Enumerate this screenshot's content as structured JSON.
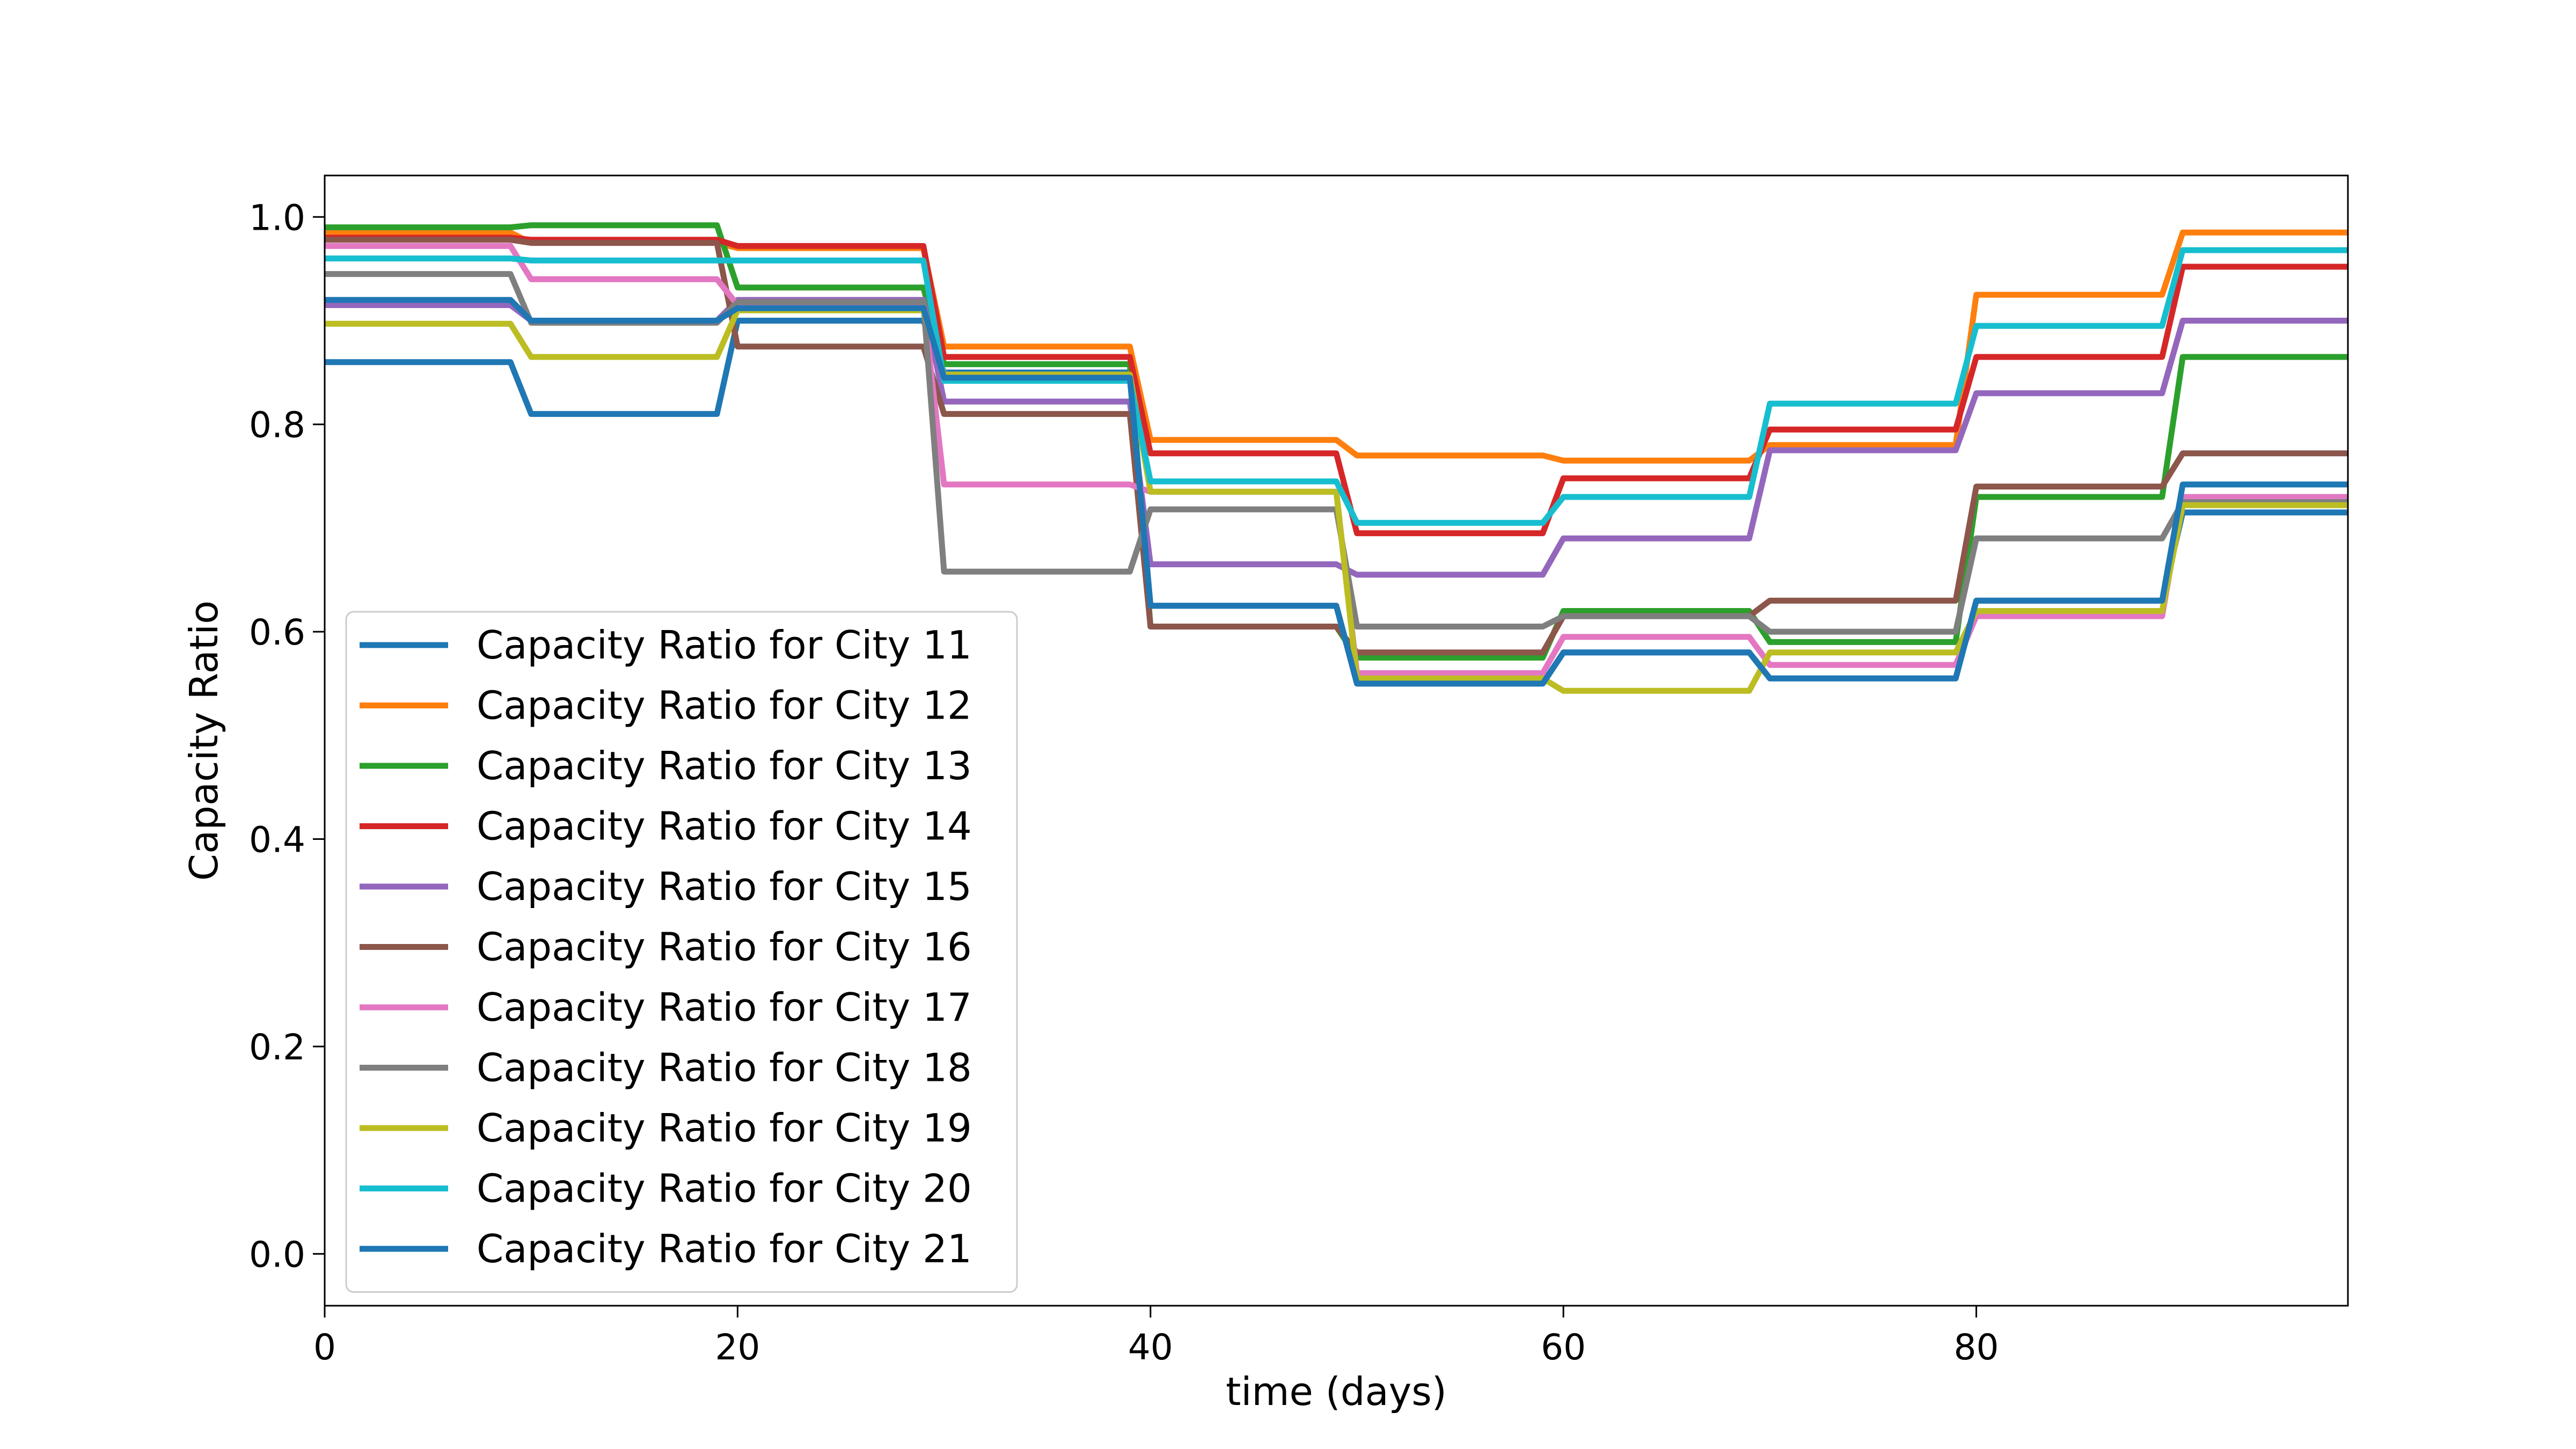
{
  "chart_data": {
    "type": "line",
    "title": "",
    "xlabel": "time (days)",
    "ylabel": "Capacity Ratio",
    "xlim": [
      0,
      98
    ],
    "ylim": [
      -0.05,
      1.04
    ],
    "x_ticks": [
      0,
      20,
      40,
      60,
      80
    ],
    "y_ticks": [
      0.0,
      0.2,
      0.4,
      0.6,
      0.8,
      1.0
    ],
    "x_tick_labels": [
      "0",
      "20",
      "40",
      "60",
      "80"
    ],
    "y_tick_labels": [
      "0.0",
      "0.2",
      "0.4",
      "0.6",
      "0.8",
      "1.0"
    ],
    "grid": false,
    "legend_position": "lower-left",
    "x": [
      0,
      9,
      10,
      19,
      20,
      29,
      30,
      39,
      40,
      49,
      50,
      59,
      60,
      69,
      70,
      79,
      80,
      89,
      90,
      98
    ],
    "series": [
      {
        "name": "Capacity Ratio for City 11",
        "color": "#1f77b4",
        "values": [
          0.86,
          0.86,
          0.81,
          0.81,
          0.9,
          0.9,
          0.85,
          0.85,
          0.625,
          0.625,
          0.55,
          0.55,
          0.58,
          0.58,
          0.555,
          0.555,
          0.63,
          0.63,
          0.715,
          0.715
        ]
      },
      {
        "name": "Capacity Ratio for City 12",
        "color": "#ff7f0e",
        "values": [
          0.985,
          0.985,
          0.975,
          0.975,
          0.97,
          0.97,
          0.875,
          0.875,
          0.785,
          0.785,
          0.77,
          0.77,
          0.765,
          0.765,
          0.78,
          0.78,
          0.925,
          0.925,
          0.985,
          0.985
        ]
      },
      {
        "name": "Capacity Ratio for City 13",
        "color": "#2ca02c",
        "values": [
          0.99,
          0.99,
          0.992,
          0.992,
          0.932,
          0.932,
          0.858,
          0.858,
          0.605,
          0.605,
          0.575,
          0.575,
          0.62,
          0.62,
          0.59,
          0.59,
          0.73,
          0.73,
          0.865,
          0.865
        ]
      },
      {
        "name": "Capacity Ratio for City 14",
        "color": "#d62728",
        "values": [
          0.98,
          0.98,
          0.978,
          0.978,
          0.972,
          0.972,
          0.865,
          0.865,
          0.772,
          0.772,
          0.695,
          0.695,
          0.748,
          0.748,
          0.795,
          0.795,
          0.865,
          0.865,
          0.952,
          0.952
        ]
      },
      {
        "name": "Capacity Ratio for City 15",
        "color": "#9467bd",
        "values": [
          0.915,
          0.915,
          0.9,
          0.9,
          0.92,
          0.92,
          0.822,
          0.822,
          0.665,
          0.665,
          0.655,
          0.655,
          0.69,
          0.69,
          0.775,
          0.775,
          0.83,
          0.83,
          0.9,
          0.9
        ]
      },
      {
        "name": "Capacity Ratio for City 16",
        "color": "#8c564b",
        "values": [
          0.978,
          0.978,
          0.975,
          0.975,
          0.875,
          0.875,
          0.81,
          0.81,
          0.605,
          0.605,
          0.58,
          0.58,
          0.615,
          0.615,
          0.63,
          0.63,
          0.74,
          0.74,
          0.772,
          0.772
        ]
      },
      {
        "name": "Capacity Ratio for City 17",
        "color": "#e377c2",
        "values": [
          0.972,
          0.972,
          0.94,
          0.94,
          0.915,
          0.915,
          0.742,
          0.742,
          0.735,
          0.735,
          0.56,
          0.56,
          0.595,
          0.595,
          0.568,
          0.568,
          0.615,
          0.615,
          0.73,
          0.73
        ]
      },
      {
        "name": "Capacity Ratio for City 18",
        "color": "#7f7f7f",
        "values": [
          0.945,
          0.945,
          0.898,
          0.898,
          0.918,
          0.918,
          0.658,
          0.658,
          0.718,
          0.718,
          0.605,
          0.605,
          0.615,
          0.615,
          0.6,
          0.6,
          0.69,
          0.69,
          0.725,
          0.725
        ]
      },
      {
        "name": "Capacity Ratio for City 19",
        "color": "#bcbd22",
        "values": [
          0.897,
          0.897,
          0.865,
          0.865,
          0.91,
          0.91,
          0.848,
          0.848,
          0.735,
          0.735,
          0.555,
          0.555,
          0.543,
          0.543,
          0.58,
          0.58,
          0.62,
          0.62,
          0.722,
          0.722
        ]
      },
      {
        "name": "Capacity Ratio for City 20",
        "color": "#17becf",
        "values": [
          0.96,
          0.96,
          0.958,
          0.958,
          0.958,
          0.958,
          0.842,
          0.842,
          0.745,
          0.745,
          0.705,
          0.705,
          0.73,
          0.73,
          0.82,
          0.82,
          0.895,
          0.895,
          0.968,
          0.968
        ]
      },
      {
        "name": "Capacity Ratio for City 21",
        "color": "#1f77b4",
        "values": [
          0.92,
          0.92,
          0.9,
          0.9,
          0.912,
          0.912,
          0.845,
          0.845,
          0.625,
          0.625,
          0.55,
          0.55,
          0.58,
          0.58,
          0.555,
          0.555,
          0.63,
          0.63,
          0.742,
          0.742
        ]
      }
    ]
  }
}
